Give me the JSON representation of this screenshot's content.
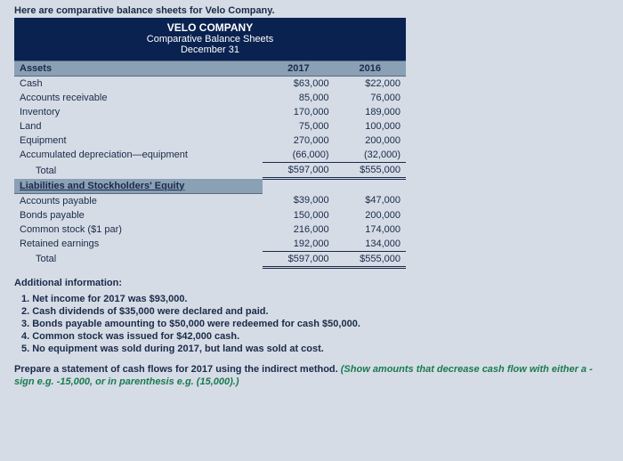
{
  "intro": "Here are comparative balance sheets for Velo Company.",
  "company": "VELO COMPANY",
  "title": "Comparative Balance Sheets",
  "date": "December 31",
  "col1": "2017",
  "col2": "2016",
  "assets_hdr": "Assets",
  "rowsA": [
    {
      "l": "Cash",
      "a": "$63,000",
      "b": "$22,000"
    },
    {
      "l": "Accounts receivable",
      "a": "85,000",
      "b": "76,000"
    },
    {
      "l": "Inventory",
      "a": "170,000",
      "b": "189,000"
    },
    {
      "l": "Land",
      "a": "75,000",
      "b": "100,000"
    },
    {
      "l": "Equipment",
      "a": "270,000",
      "b": "200,000"
    },
    {
      "l": "Accumulated depreciation—equipment",
      "a": "(66,000)",
      "b": "(32,000)"
    }
  ],
  "totalA": {
    "l": "Total",
    "a": "$597,000",
    "b": "$555,000"
  },
  "liab_hdr": "Liabilities and Stockholders' Equity",
  "rowsB": [
    {
      "l": "Accounts payable",
      "a": "$39,000",
      "b": "$47,000"
    },
    {
      "l": "Bonds payable",
      "a": "150,000",
      "b": "200,000"
    },
    {
      "l": "Common stock ($1 par)",
      "a": "216,000",
      "b": "174,000"
    },
    {
      "l": "Retained earnings",
      "a": "192,000",
      "b": "134,000"
    }
  ],
  "totalB": {
    "l": "Total",
    "a": "$597,000",
    "b": "$555,000"
  },
  "addl": "Additional information:",
  "items": [
    "1.  Net income for 2017 was $93,000.",
    "2.  Cash dividends of $35,000 were declared and paid.",
    "3.  Bonds payable amounting to $50,000 were redeemed for cash $50,000.",
    "4.  Common stock was issued for $42,000 cash.",
    "5.  No equipment was sold during 2017, but land was sold at cost."
  ],
  "instr1": "Prepare a statement of cash flows for 2017 using the indirect method. ",
  "instr2": "(Show amounts that decrease cash flow with either a - sign e.g. -15,000, or in parenthesis e.g. (15,000).)"
}
